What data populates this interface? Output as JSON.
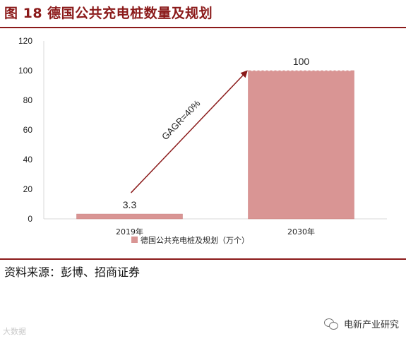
{
  "header": {
    "title": "图 18  德国公共充电桩数量及规划"
  },
  "source": {
    "text": "资料来源：彭博、招商证券"
  },
  "watermark": {
    "left": "大数据",
    "right": "电新产业研究",
    "icon": "wechat-icon"
  },
  "colors": {
    "title": "#8b1a1a",
    "bar": "#d99594",
    "bar_edge": "#c97f7f",
    "arrow": "#8b1a1a",
    "axis": "#d9d9d9"
  },
  "chart_data": {
    "type": "bar",
    "categories": [
      "2019年",
      "2030年"
    ],
    "series": [
      {
        "name": "德国公共充电桩及规划（万个）",
        "values": [
          3.3,
          100
        ]
      }
    ],
    "data_labels": [
      "3.3",
      "100"
    ],
    "y_ticks": [
      "0",
      "20",
      "40",
      "60",
      "80",
      "100",
      "120"
    ],
    "ylim": [
      0,
      120
    ],
    "grid": false,
    "legend": "bottom",
    "annotation": {
      "text": "GAGR=40%",
      "from": [
        "2019年",
        3.3
      ],
      "to": [
        "2030年",
        100
      ]
    }
  }
}
